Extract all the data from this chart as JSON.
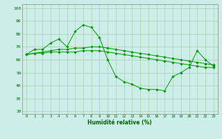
{
  "title": "",
  "xlabel": "Humidité relative (%)",
  "ylabel": "",
  "background_color": "#cceee8",
  "grid_color": "#aaccaa",
  "line_color": "#009900",
  "xlim": [
    -0.5,
    23.5
  ],
  "ylim": [
    18,
    103
  ],
  "yticks": [
    20,
    30,
    40,
    50,
    60,
    70,
    80,
    90,
    100
  ],
  "xticks": [
    0,
    1,
    2,
    3,
    4,
    5,
    6,
    7,
    8,
    9,
    10,
    11,
    12,
    13,
    14,
    15,
    16,
    17,
    18,
    19,
    20,
    21,
    22,
    23
  ],
  "series1": [
    64,
    68,
    68,
    73,
    76,
    70,
    82,
    87,
    85,
    77,
    60,
    47,
    43,
    41,
    38,
    37,
    37,
    36,
    47,
    50,
    54,
    67,
    60,
    55
  ],
  "series2": [
    64,
    65,
    66,
    67,
    68,
    68,
    69,
    69,
    70,
    70,
    69,
    68,
    67,
    66,
    65,
    64,
    63,
    62,
    61,
    60,
    59,
    58,
    57,
    56
  ],
  "series3": [
    64,
    65,
    65,
    66,
    66,
    66,
    66,
    67,
    67,
    67,
    66,
    65,
    64,
    63,
    62,
    61,
    60,
    59,
    58,
    57,
    56,
    55,
    54,
    54
  ],
  "figsize": [
    3.2,
    2.0
  ],
  "dpi": 100
}
